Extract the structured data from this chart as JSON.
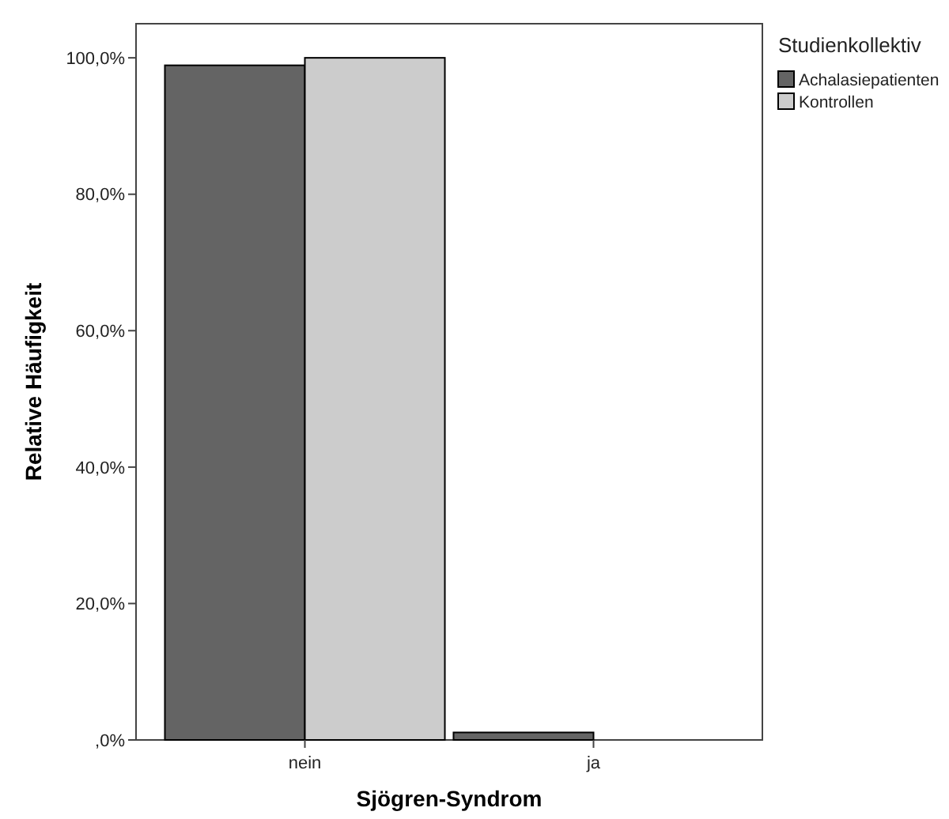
{
  "chart_data": {
    "type": "bar",
    "xlabel": "Sjögren-Syndrom",
    "ylabel": "Relative Häufigkeit",
    "legend_title": "Studienkollektiv",
    "categories": [
      "nein",
      "ja"
    ],
    "series": [
      {
        "name": "Achalasiepatienten",
        "color": "#646464",
        "values": [
          98.9,
          1.1
        ]
      },
      {
        "name": "Kontrollen",
        "color": "#cccccc",
        "values": [
          100,
          0
        ]
      }
    ],
    "ylim": [
      0,
      105
    ],
    "yticks": [
      {
        "value": 0,
        "label": ",0%"
      },
      {
        "value": 20,
        "label": "20,0%"
      },
      {
        "value": 40,
        "label": "40,0%"
      },
      {
        "value": 60,
        "label": "60,0%"
      },
      {
        "value": 80,
        "label": "80,0%"
      },
      {
        "value": 100,
        "label": "100,0%"
      }
    ],
    "grid": false,
    "legend": "top right"
  }
}
